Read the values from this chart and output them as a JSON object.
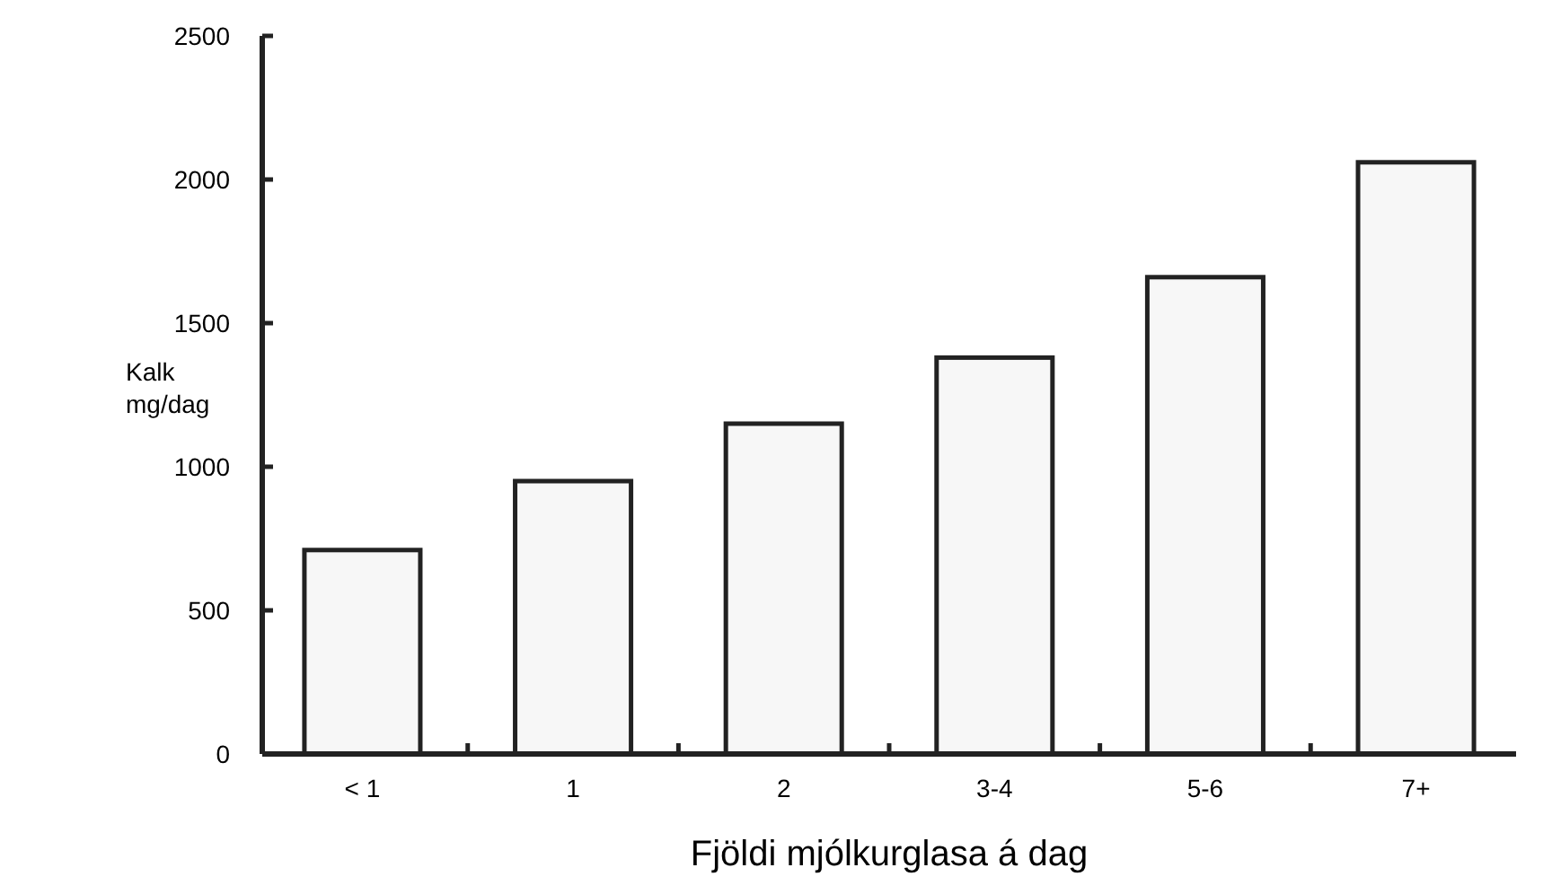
{
  "chart_data": {
    "type": "bar",
    "xlabel": "Fjöldi mjólkurglasa á dag",
    "ylabel": "Kalk mg/dag",
    "categories": [
      "< 1",
      "1",
      "2",
      "3-4",
      "5-6",
      "7+"
    ],
    "values": [
      710,
      950,
      1150,
      1380,
      1660,
      2060
    ],
    "color": "#f7f7f7",
    "ylim": [
      0,
      2500
    ],
    "yticks": [
      0,
      500,
      1000,
      1500,
      2000,
      2500
    ],
    "grid": false
  }
}
